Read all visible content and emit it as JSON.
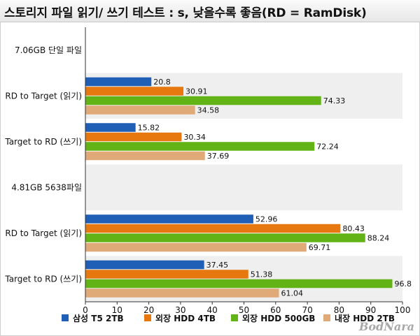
{
  "title": "스토리지 파일 읽기/ 쓰기 테스트 : s, 낮을수록 좋음(RD = RamDisk)",
  "watermark": "BodNara",
  "chart_data": {
    "type": "bar",
    "orientation": "horizontal",
    "title": "스토리지 파일 읽기/ 쓰기 테스트 : s, 낮을수록 좋음(RD = RamDisk)",
    "categories": [
      "7.06GB 단일 파일",
      "RD to Target (읽기)",
      "Target to RD (쓰기)",
      "4.81GB 5638파일",
      "RD to Target (읽기)",
      "Target to RD (쓰기)"
    ],
    "series": [
      {
        "name": "삼성 T5 2TB",
        "color": "#1f5fb5",
        "values": [
          null,
          20.8,
          15.82,
          null,
          52.96,
          37.45
        ]
      },
      {
        "name": "외장 HDD 4TB",
        "color": "#e6780f",
        "values": [
          null,
          30.91,
          30.34,
          null,
          80.43,
          51.38
        ]
      },
      {
        "name": "외장 HDD 500GB",
        "color": "#62b316",
        "values": [
          null,
          74.33,
          72.24,
          null,
          88.24,
          96.8
        ]
      },
      {
        "name": "내장 HDD 2TB",
        "color": "#e0aa78",
        "values": [
          null,
          34.58,
          37.69,
          null,
          69.71,
          61.04
        ]
      }
    ],
    "value_labels": [
      [
        null,
        "20.8",
        "15.82",
        null,
        "52.96",
        "37.45"
      ],
      [
        null,
        "30.91",
        "30.34",
        null,
        "80.43",
        "51.38"
      ],
      [
        null,
        "74.33",
        "72.24",
        null,
        "88.24",
        "96.8"
      ],
      [
        null,
        "34.58",
        "37.69",
        null,
        "69.71",
        "61.04"
      ]
    ],
    "xlim": [
      0,
      100
    ],
    "xticks": [
      0,
      10,
      20,
      30,
      40,
      50,
      60,
      70,
      80,
      90,
      100
    ],
    "grid": false,
    "legend": "bottom",
    "band_colors": [
      "#ffffff",
      "#efefef"
    ]
  }
}
